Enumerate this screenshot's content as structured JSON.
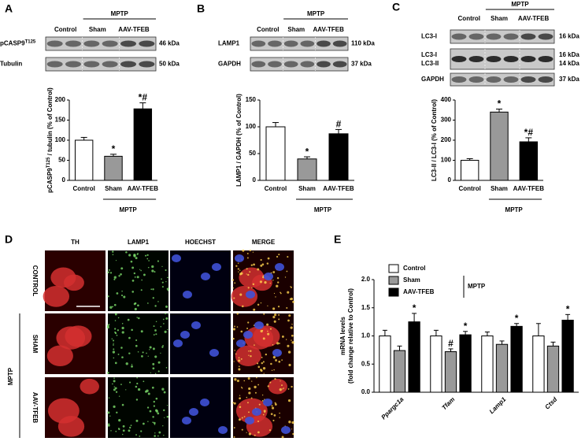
{
  "panel_letters": [
    "A",
    "B",
    "C",
    "D",
    "E"
  ],
  "blots": [
    {
      "headers": [
        "Control",
        "Sham",
        "AAV-TFEB"
      ],
      "group": "MPTP",
      "rows": [
        {
          "label": "pCASP9",
          "label_sup": "T125",
          "kda": "46 kDa"
        },
        {
          "label": "Tubulin",
          "kda": "50 kDa"
        }
      ]
    },
    {
      "headers": [
        "Control",
        "Sham",
        "AAV-TFEB"
      ],
      "group": "MPTP",
      "rows": [
        {
          "label": "LAMP1",
          "kda": "110 kDa"
        },
        {
          "label": "GAPDH",
          "kda": "37 kDa"
        }
      ]
    },
    {
      "headers": [
        "Control",
        "Sham",
        "AAV-TFEB"
      ],
      "group": "MPTP",
      "rows": [
        {
          "label": "LC3-I",
          "kda": "16 kDa"
        },
        {
          "label": "LC3-I",
          "label2": "LC3-II",
          "kda": "16 kDa",
          "kda2": "14 kDa"
        },
        {
          "label": "GAPDH",
          "kda": "37 kDa"
        }
      ]
    }
  ],
  "microscopy": {
    "columns": [
      "TH",
      "LAMP1",
      "HOECHST",
      "MERGE"
    ],
    "rows": [
      "CONTROL",
      "SHAM",
      "AAV-TFEB"
    ],
    "group": "MPTP"
  },
  "chart_data": [
    {
      "type": "bar",
      "ylabel": "pCASP9",
      "ylabel_sup": "T125",
      "ylabel_rest": " / tubulin (% of Control)",
      "categories": [
        "Control",
        "Sham",
        "AAV-TFEB"
      ],
      "values": [
        100,
        60,
        178
      ],
      "errors": [
        7,
        5,
        15
      ],
      "annotations": [
        null,
        "*",
        "*#"
      ],
      "colors": [
        "#ffffff",
        "#999999",
        "#000000"
      ],
      "group_label": "MPTP",
      "ylim": [
        0,
        200
      ],
      "yticks": [
        0,
        50,
        100,
        150,
        200
      ]
    },
    {
      "type": "bar",
      "ylabel": "LAMP1 / GAPDH (% of Control)",
      "categories": [
        "Control",
        "Sham",
        "AAV-TFEB"
      ],
      "values": [
        100,
        40,
        87
      ],
      "errors": [
        8,
        4,
        8
      ],
      "annotations": [
        null,
        "*",
        "#"
      ],
      "colors": [
        "#ffffff",
        "#999999",
        "#000000"
      ],
      "group_label": "MPTP",
      "ylim": [
        0,
        150
      ],
      "yticks": [
        0,
        50,
        100,
        150
      ]
    },
    {
      "type": "bar",
      "ylabel": "LC3-II / LC3-I (% of Control)",
      "categories": [
        "Control",
        "Sham",
        "AAV-TFEB"
      ],
      "values": [
        100,
        340,
        192
      ],
      "errors": [
        8,
        15,
        20
      ],
      "annotations": [
        null,
        "*",
        "*#"
      ],
      "colors": [
        "#ffffff",
        "#999999",
        "#000000"
      ],
      "group_label": "MPTP",
      "ylim": [
        0,
        400
      ],
      "yticks": [
        0,
        100,
        200,
        300,
        400
      ]
    },
    {
      "type": "grouped_bar",
      "ylabel": "mRNA levels",
      "ylabel2": "(fold change relative to Control)",
      "categories": [
        "Ppargc1a",
        "Tfam",
        "Lamp1",
        "Ctsd"
      ],
      "series": [
        {
          "name": "Control",
          "color": "#ffffff",
          "values": [
            1.0,
            1.0,
            1.0,
            1.0
          ],
          "errors": [
            0.1,
            0.1,
            0.07,
            0.22
          ],
          "annotations": [
            null,
            null,
            null,
            null
          ]
        },
        {
          "name": "Sham",
          "color": "#999999",
          "values": [
            0.74,
            0.72,
            0.85,
            0.82
          ],
          "errors": [
            0.08,
            0.05,
            0.06,
            0.07
          ],
          "annotations": [
            null,
            "#",
            null,
            null
          ]
        },
        {
          "name": "AAV-TFEB",
          "color": "#000000",
          "values": [
            1.25,
            1.02,
            1.17,
            1.28
          ],
          "errors": [
            0.15,
            0.06,
            0.05,
            0.1
          ],
          "annotations": [
            "*",
            "*",
            "*",
            "*"
          ]
        }
      ],
      "legend_group": "MPTP",
      "ylim": [
        0,
        2
      ],
      "yticks": [
        {
          "value": 0,
          "label": "0.0"
        },
        {
          "value": 0.5,
          "label": "0.5"
        },
        {
          "value": 1,
          "label": "1.0"
        },
        {
          "value": 1.5,
          "label": "1.5"
        },
        {
          "value": 2,
          "label": "2.0"
        }
      ]
    }
  ]
}
